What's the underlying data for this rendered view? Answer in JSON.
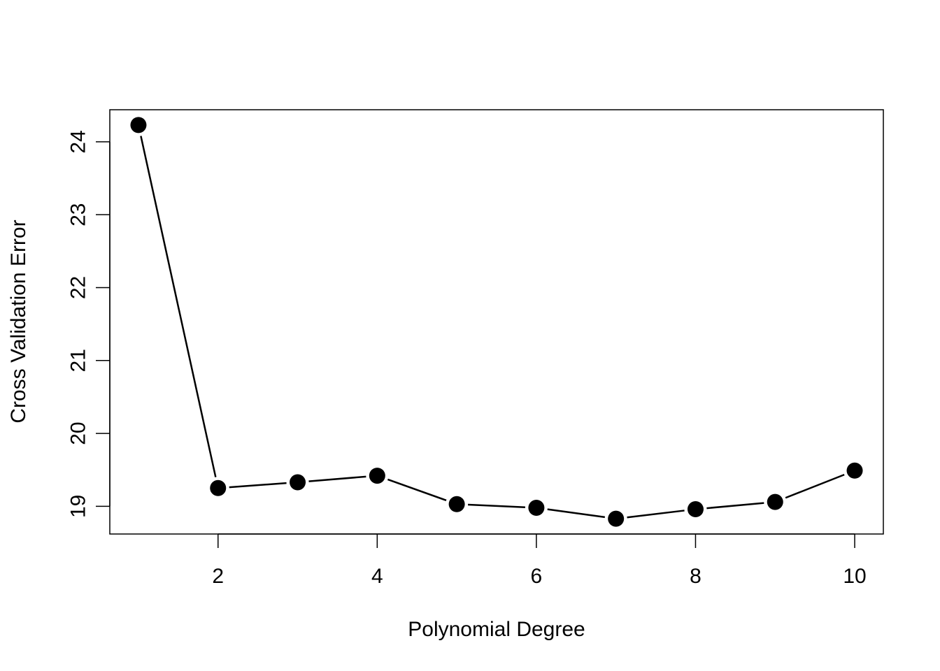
{
  "chart_data": {
    "type": "line",
    "title": "",
    "xlabel": "Polynomial Degree",
    "ylabel": "Cross Validation Error",
    "x": [
      1,
      2,
      3,
      4,
      5,
      6,
      7,
      8,
      9,
      10
    ],
    "series": [
      {
        "values": [
          24.23,
          19.25,
          19.33,
          19.42,
          19.03,
          18.98,
          18.83,
          18.96,
          19.06,
          19.49
        ]
      }
    ],
    "xticks": [
      2,
      4,
      6,
      8,
      10
    ],
    "yticks": [
      19,
      20,
      21,
      22,
      23,
      24
    ],
    "xlim": [
      0.64,
      10.36
    ],
    "ylim": [
      18.62,
      24.44
    ],
    "grid": false,
    "legend": "none",
    "marker": "filled-circle",
    "line_color": "#000000",
    "marker_color": "#000000"
  }
}
